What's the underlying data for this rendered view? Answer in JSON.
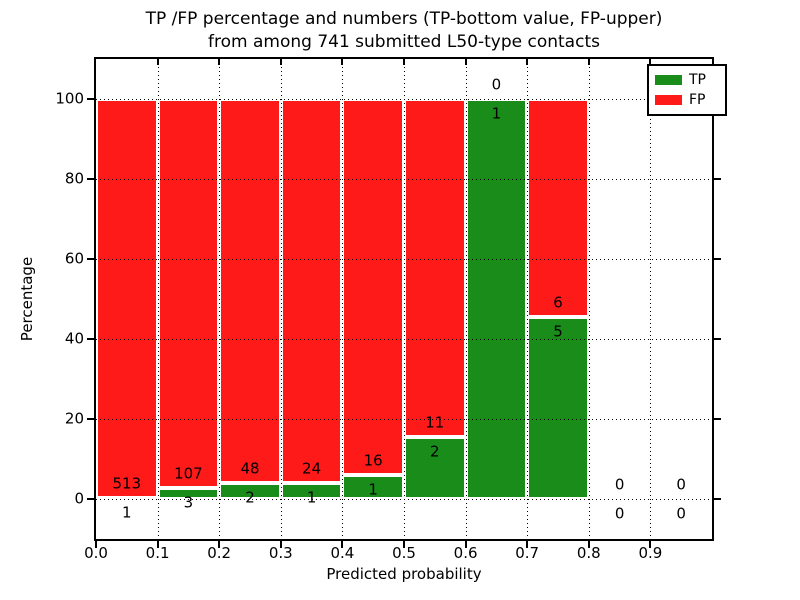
{
  "title": {
    "line1": "TP /FP percentage and numbers (TP-bottom value, FP-upper)",
    "line2": "from among 741 submitted L50-type contacts"
  },
  "axes": {
    "xlabel": "Predicted probability",
    "ylabel": "Percentage",
    "ytick_labels": [
      "0",
      "20",
      "40",
      "60",
      "80",
      "100"
    ],
    "ytick_values": [
      0,
      20,
      40,
      60,
      80,
      100
    ],
    "xtick_labels": [
      "0.0",
      "0.1",
      "0.2",
      "0.3",
      "0.4",
      "0.5",
      "0.6",
      "0.7",
      "0.8",
      "0.9"
    ],
    "xtick_values": [
      0.0,
      0.1,
      0.2,
      0.3,
      0.4,
      0.5,
      0.6,
      0.7,
      0.8,
      0.9
    ],
    "grid": "dotted"
  },
  "legend": {
    "position": "upper right",
    "items": [
      {
        "label": "TP",
        "color": "#1a8c1a"
      },
      {
        "label": "FP",
        "color": "#ff1a1a"
      }
    ]
  },
  "colors": {
    "tp_green": "#1a8c1a",
    "fp_red": "#ff1a1a",
    "background": "#ffffff",
    "frame": "#000000"
  },
  "chart_data": {
    "type": "bar",
    "stacked": true,
    "title": "TP /FP percentage and numbers (TP-bottom value, FP-upper) from among 741 submitted L50-type contacts",
    "xlabel": "Predicted probability",
    "ylabel": "Percentage",
    "xlim": [
      0.0,
      1.0
    ],
    "ylim": [
      -10,
      110
    ],
    "bin_width": 0.1,
    "bin_starts": [
      0.0,
      0.1,
      0.2,
      0.3,
      0.4,
      0.5,
      0.6,
      0.7,
      0.8,
      0.9
    ],
    "series": [
      {
        "name": "TP",
        "color": "#1a8c1a",
        "values": [
          1,
          3,
          2,
          1,
          1,
          2,
          1,
          5,
          0,
          0
        ]
      },
      {
        "name": "FP",
        "color": "#ff1a1a",
        "values": [
          513,
          107,
          48,
          24,
          16,
          11,
          0,
          6,
          0,
          0
        ]
      }
    ],
    "tp_percent": [
      0.19,
      2.73,
      4.0,
      4.0,
      5.88,
      15.38,
      100.0,
      45.45,
      0,
      0
    ],
    "bar_total_percent": [
      100,
      100,
      100,
      100,
      100,
      100,
      100,
      100,
      0,
      0
    ],
    "total_contacts": 741,
    "legend_position": "upper right",
    "grid": true
  }
}
